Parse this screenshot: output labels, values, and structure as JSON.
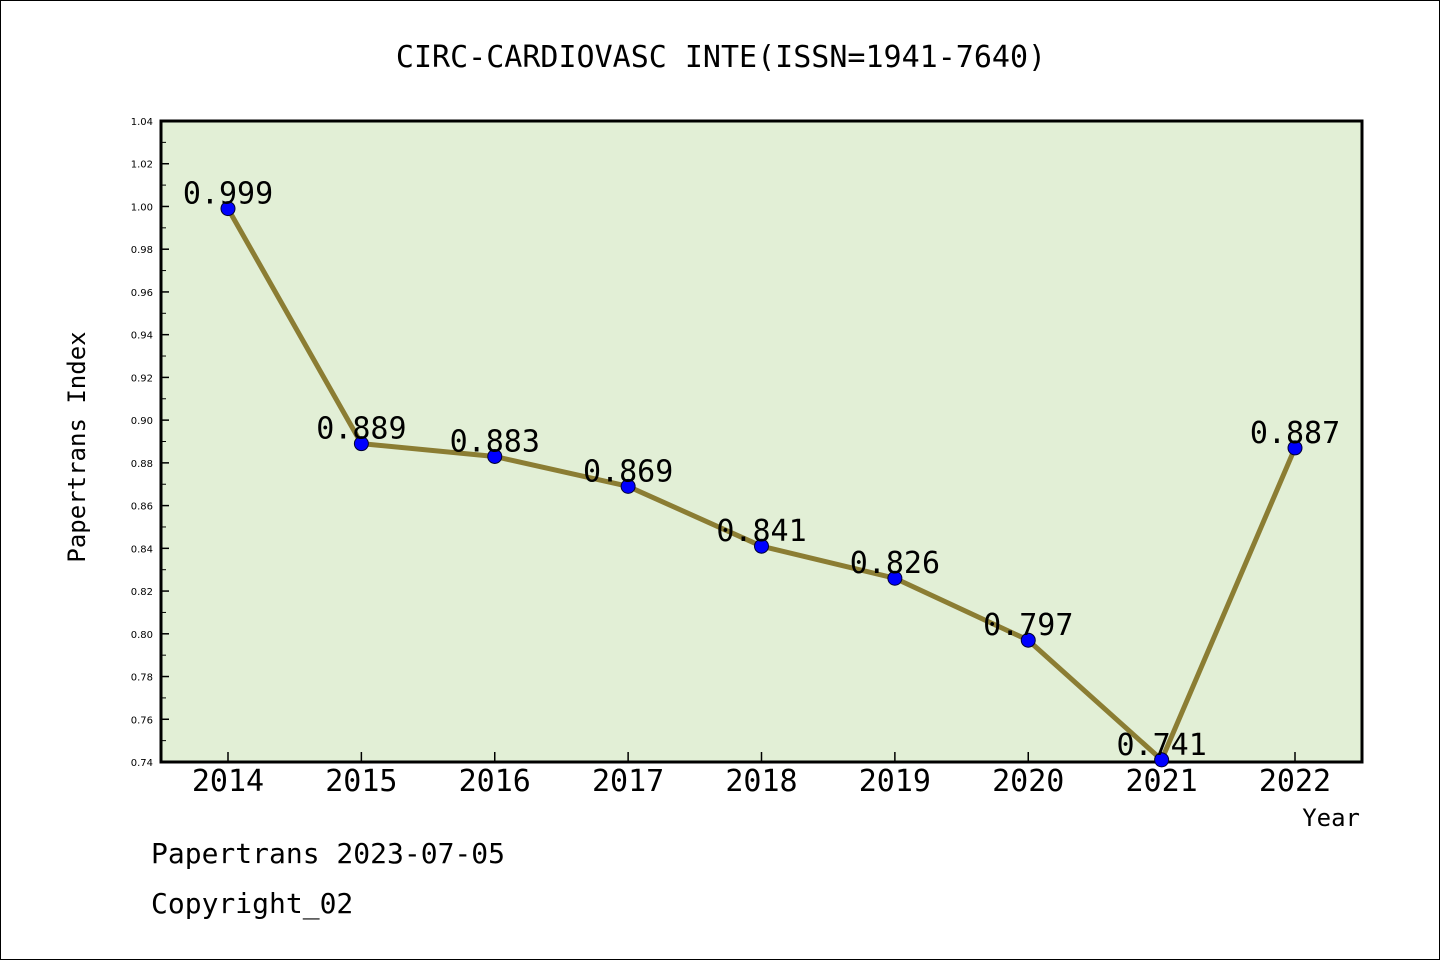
{
  "chart_data": {
    "type": "line",
    "title": "CIRC-CARDIOVASC INTE(ISSN=1941-7640)",
    "xlabel": "Year",
    "ylabel": "Papertrans Index",
    "categories": [
      "2014",
      "2015",
      "2016",
      "2017",
      "2018",
      "2019",
      "2020",
      "2021",
      "2022"
    ],
    "series": [
      {
        "values": [
          0.999,
          0.889,
          0.883,
          0.869,
          0.841,
          0.826,
          0.797,
          0.741,
          0.887
        ],
        "labels": [
          "0.999",
          "0.889",
          "0.883",
          "0.869",
          "0.841",
          "0.826",
          "0.797",
          "0.741",
          "0.887"
        ]
      }
    ],
    "ylim": [
      0.74,
      1.04
    ],
    "yticks": [
      "0.74",
      "0.76",
      "0.78",
      "0.80",
      "0.82",
      "0.84",
      "0.86",
      "0.88",
      "0.90",
      "0.92",
      "0.94",
      "0.96",
      "0.98",
      "1.00",
      "1.02",
      "1.04"
    ],
    "grid": false,
    "colors": {
      "plot_background": "#e2efd6",
      "line": "#8b7d33",
      "marker": "#0000ff"
    }
  },
  "footer": {
    "source": "Papertrans 2023-07-05",
    "copyright": "Copyright_02"
  }
}
